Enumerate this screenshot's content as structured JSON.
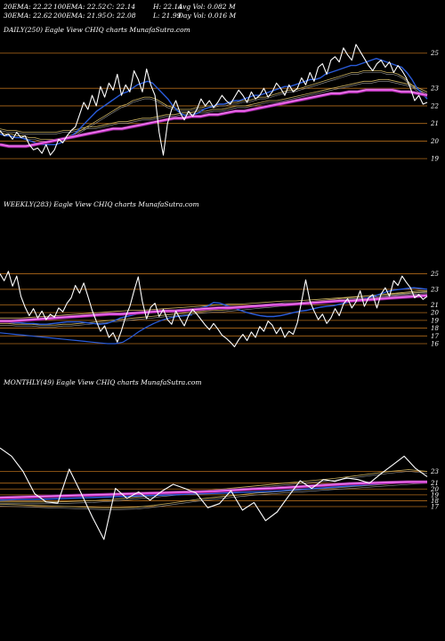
{
  "stats": {
    "ema20": "20EMA: 22.22",
    "ema100": "100EMA: 22.52",
    "close": "C: 22.14",
    "high": "H: 22.14",
    "avgvol": "Avg Vol: 0.082  M",
    "ema30": "30EMA: 22.62",
    "ema200": "200EMA: 21.95",
    "open": "O: 22.08",
    "low": "L: 21.99",
    "dayvol": "Day Vol: 0.016  M"
  },
  "panels": [
    {
      "label": "DAILY(250) Eagle  View  CHIQ charts MunafaSutra.com"
    },
    {
      "label": "WEEKLY(283) Eagle  View  CHIQ charts MunafaSutra.com"
    },
    {
      "label": "MONTHLY(49) Eagle  View  CHIQ charts MunafaSutra.com"
    }
  ],
  "colors": {
    "background": "#000000",
    "price": "#ffffff",
    "ema20": "#2a5cdb",
    "ema200": "#e040e0",
    "ema_other": "#c8b060",
    "level": "#b06a1a"
  },
  "chart_data": [
    {
      "type": "line",
      "title": "DAILY(250) Eagle  View  CHIQ charts MunafaSutra.com",
      "ylim": [
        18.4,
        26
      ],
      "levels": [
        25,
        23,
        22,
        21,
        20,
        19
      ],
      "series": [
        {
          "name": "price",
          "values": [
            20.6,
            20.3,
            20.4,
            20.1,
            20.5,
            20.2,
            20.3,
            19.8,
            19.5,
            19.6,
            19.3,
            19.8,
            19.2,
            19.5,
            20.1,
            19.9,
            20.3,
            20.6,
            20.8,
            21.5,
            22.2,
            21.8,
            22.6,
            22.0,
            23.1,
            22.5,
            23.3,
            22.9,
            23.8,
            22.6,
            23.2,
            22.8,
            24.0,
            23.5,
            22.8,
            24.1,
            23.2,
            22.6,
            20.5,
            19.2,
            21.0,
            21.8,
            22.3,
            21.6,
            21.2,
            21.7,
            21.4,
            21.8,
            22.4,
            22.0,
            22.3,
            21.9,
            22.2,
            22.6,
            22.3,
            22.1,
            22.5,
            22.9,
            22.6,
            22.2,
            22.8,
            22.4,
            22.6,
            23.0,
            22.5,
            22.8,
            23.3,
            23.0,
            22.6,
            23.2,
            22.8,
            23.0,
            23.6,
            23.2,
            23.9,
            23.4,
            24.2,
            24.4,
            23.8,
            24.6,
            24.8,
            24.5,
            25.3,
            24.9,
            24.6,
            25.5,
            25.1,
            24.7,
            24.3,
            24.0,
            24.4,
            24.6,
            24.2,
            24.5,
            23.9,
            24.3,
            24.0,
            23.6,
            23.0,
            22.3,
            22.6,
            22.1,
            22.2
          ]
        },
        {
          "name": "ema20",
          "values": [
            20.4,
            20.3,
            20.3,
            20.2,
            20.2,
            20.1,
            20.0,
            19.9,
            19.8,
            19.8,
            19.8,
            19.8,
            19.9,
            20.1,
            20.3,
            20.5,
            20.8,
            21.1,
            21.4,
            21.7,
            21.9,
            22.1,
            22.3,
            22.5,
            22.7,
            22.8,
            23.0,
            23.2,
            23.3,
            23.4,
            23.3,
            23.0,
            22.7,
            22.4,
            22.0,
            21.7,
            21.5,
            21.4,
            21.5,
            21.6,
            21.8,
            21.9,
            22.0,
            22.1,
            22.1,
            22.2,
            22.3,
            22.3,
            22.4,
            22.5,
            22.6,
            22.6,
            22.7,
            22.8,
            22.9,
            23.0,
            23.1,
            23.1,
            23.2,
            23.3,
            23.4,
            23.5,
            23.5,
            23.6,
            23.8,
            23.9,
            24.0,
            24.1,
            24.2,
            24.3,
            24.3,
            24.4,
            24.5,
            24.6,
            24.7,
            24.6,
            24.5,
            24.4,
            24.3,
            24.2,
            23.9,
            23.5,
            23.0,
            22.7,
            22.4
          ]
        },
        {
          "name": "ema30",
          "values": [
            20.5,
            20.4,
            20.4,
            20.3,
            20.3,
            20.2,
            20.2,
            20.1,
            20.1,
            20.1,
            20.1,
            20.2,
            20.3,
            20.4,
            20.6,
            20.8,
            21.0,
            21.2,
            21.4,
            21.6,
            21.8,
            22.0,
            22.1,
            22.3,
            22.4,
            22.5,
            22.5,
            22.4,
            22.2,
            22.0,
            21.9,
            21.8,
            21.8,
            21.8,
            21.9,
            21.9,
            22.0,
            22.0,
            22.1,
            22.1,
            22.2,
            22.2,
            22.3,
            22.3,
            22.4,
            22.5,
            22.5,
            22.6,
            22.7,
            22.8,
            22.9,
            22.9,
            23.0,
            23.1,
            23.2,
            23.3,
            23.4,
            23.5,
            23.6,
            23.7,
            23.8,
            23.9,
            23.9,
            24.0,
            24.0,
            24.0,
            24.0,
            23.9,
            23.9,
            23.8,
            23.6,
            23.3,
            23.0,
            22.8,
            22.6
          ]
        },
        {
          "name": "ema100",
          "values": [
            20.7,
            20.6,
            20.6,
            20.5,
            20.5,
            20.5,
            20.5,
            20.5,
            20.6,
            20.6,
            20.7,
            20.8,
            20.8,
            20.9,
            21.0,
            21.1,
            21.1,
            21.2,
            21.3,
            21.3,
            21.4,
            21.5,
            21.5,
            21.6,
            21.6,
            21.7,
            21.7,
            21.8,
            21.8,
            21.9,
            22.0,
            22.0,
            22.1,
            22.2,
            22.3,
            22.3,
            22.4,
            22.5,
            22.6,
            22.7,
            22.8,
            22.9,
            23.0,
            23.1,
            23.2,
            23.3,
            23.4,
            23.4,
            23.5,
            23.5,
            23.4,
            23.3,
            23.2,
            23.0,
            22.8
          ]
        },
        {
          "name": "ema200",
          "values": [
            19.8,
            19.7,
            19.7,
            19.7,
            19.8,
            19.9,
            20.0,
            20.1,
            20.2,
            20.3,
            20.4,
            20.5,
            20.6,
            20.7,
            20.7,
            20.8,
            20.9,
            21.0,
            21.1,
            21.2,
            21.3,
            21.3,
            21.4,
            21.4,
            21.5,
            21.5,
            21.6,
            21.7,
            21.7,
            21.8,
            21.9,
            22.0,
            22.1,
            22.2,
            22.3,
            22.4,
            22.5,
            22.6,
            22.7,
            22.7,
            22.8,
            22.8,
            22.9,
            22.9,
            22.9,
            22.9,
            22.8,
            22.8,
            22.7,
            22.6
          ]
        }
      ]
    },
    {
      "type": "line",
      "title": "WEEKLY(283) Eagle  View  CHIQ charts MunafaSutra.com",
      "ylim": [
        14.4,
        27
      ],
      "levels": [
        25,
        23,
        21,
        20,
        19,
        18,
        17,
        16
      ],
      "series": [
        {
          "name": "price",
          "values": [
            25.0,
            24.1,
            25.3,
            23.4,
            24.7,
            22.1,
            20.7,
            19.6,
            20.5,
            19.3,
            20.2,
            19.1,
            19.8,
            19.4,
            20.6,
            20.1,
            21.2,
            21.9,
            23.5,
            22.5,
            23.8,
            22.1,
            20.3,
            18.9,
            17.6,
            18.3,
            16.8,
            17.4,
            16.2,
            17.7,
            19.5,
            20.8,
            22.8,
            24.6,
            21.4,
            19.2,
            20.7,
            21.2,
            19.5,
            20.4,
            19.1,
            18.5,
            20.2,
            19.2,
            18.3,
            19.6,
            20.4,
            19.8,
            19.1,
            18.4,
            17.8,
            18.6,
            17.9,
            17.1,
            16.7,
            16.2,
            15.6,
            16.5,
            17.2,
            16.4,
            17.5,
            16.8,
            18.2,
            17.6,
            18.9,
            18.4,
            17.3,
            18.1,
            16.8,
            17.6,
            17.2,
            18.7,
            21.4,
            24.2,
            21.5,
            20.2,
            19.1,
            19.8,
            18.6,
            19.3,
            20.5,
            19.6,
            21.1,
            21.8,
            20.6,
            21.4,
            22.8,
            20.8,
            21.9,
            22.3,
            20.6,
            22.4,
            23.2,
            22.1,
            24.1,
            23.5,
            24.7,
            23.9,
            23.2,
            21.9,
            22.3,
            21.7,
            22.1
          ]
        },
        {
          "name": "ema20",
          "values": [
            18.8,
            18.8,
            18.7,
            18.7,
            18.6,
            18.6,
            18.5,
            18.5,
            18.6,
            18.7,
            18.8,
            18.8,
            18.8,
            18.7,
            18.6,
            18.5,
            18.6,
            18.9,
            19.3,
            19.5,
            19.7,
            19.9,
            20.0,
            20.1,
            20.2,
            20.3,
            20.3,
            20.4,
            20.4,
            20.5,
            20.6,
            20.8,
            21.3,
            21.2,
            20.9,
            20.6,
            20.3,
            20.0,
            19.8,
            19.6,
            19.5,
            19.5,
            19.6,
            19.8,
            20.0,
            20.2,
            20.3,
            20.5,
            20.7,
            20.8,
            20.9,
            21.1,
            21.3,
            21.5,
            21.7,
            21.9,
            22.1,
            22.4,
            22.7,
            22.9,
            23.0,
            23.1,
            23.2,
            23.1,
            23.0
          ]
        },
        {
          "name": "ema30",
          "values": [
            18.6,
            18.6,
            18.5,
            18.5,
            18.5,
            18.4,
            18.4,
            18.4,
            18.5,
            18.5,
            18.6,
            18.7,
            18.8,
            18.9,
            19.0,
            19.1,
            19.2,
            19.3,
            19.4,
            19.5,
            19.6,
            19.7,
            19.8,
            19.9,
            20.0,
            20.1,
            20.2,
            20.3,
            20.3,
            20.4,
            20.5,
            20.6,
            20.7,
            20.8,
            20.9,
            21.0,
            21.1,
            21.2,
            21.3,
            21.4,
            21.5,
            21.6,
            21.7,
            21.8,
            21.9,
            22.0,
            22.1,
            22.2,
            22.3,
            22.4,
            22.5,
            22.6,
            22.7,
            22.8,
            22.8
          ]
        },
        {
          "name": "ema100",
          "values": [
            19.3,
            19.3,
            19.3,
            19.4,
            19.5,
            19.6,
            19.7,
            19.8,
            19.9,
            20.0,
            20.1,
            20.2,
            20.3,
            20.3,
            20.4,
            20.5,
            20.6,
            20.7,
            20.8,
            20.9,
            21.0,
            21.1,
            21.1,
            21.2,
            21.3,
            21.4,
            21.5,
            21.5,
            21.6,
            21.7,
            21.8,
            21.9,
            22.0,
            22.1,
            22.2,
            22.3,
            22.4,
            22.5,
            22.6,
            22.7
          ]
        },
        {
          "name": "ema200",
          "values": [
            18.9,
            18.9,
            19.0,
            19.1,
            19.2,
            19.3,
            19.4,
            19.5,
            19.6,
            19.7,
            19.8,
            19.8,
            19.9,
            20.0,
            20.1,
            20.2,
            20.2,
            20.3,
            20.4,
            20.5,
            20.6,
            20.6,
            20.7,
            20.8,
            20.9,
            21.0,
            21.0,
            21.1,
            21.2,
            21.3,
            21.4,
            21.5,
            21.5,
            21.6,
            21.7,
            21.8,
            21.9,
            22.0,
            22.1,
            22.2
          ]
        },
        {
          "name": "ema_low",
          "values": [
            17.4,
            17.3,
            17.2,
            17.1,
            17.0,
            16.9,
            16.8,
            16.7,
            16.6,
            16.5,
            16.4,
            16.3,
            16.2,
            16.1,
            16.0,
            16.0,
            16.2,
            16.8,
            17.5,
            18.1,
            18.6,
            19.0,
            19.3,
            19.5,
            19.6,
            19.7
          ]
        }
      ]
    },
    {
      "type": "line",
      "title": "MONTHLY(49) Eagle  View  CHIQ charts MunafaSutra.com",
      "ylim": [
        12.6,
        29
      ],
      "levels": [
        23,
        21,
        20,
        19,
        18,
        17
      ],
      "series": [
        {
          "name": "price",
          "values": [
            27.0,
            25.6,
            23.0,
            19.2,
            17.8,
            17.6,
            23.4,
            19.4,
            15.2,
            11.4,
            20.1,
            18.4,
            19.5,
            18.1,
            19.6,
            20.8,
            20.1,
            19.3,
            16.8,
            17.5,
            19.7,
            16.4,
            17.7,
            14.6,
            16.1,
            18.8,
            21.4,
            20.1,
            21.6,
            21.3,
            21.9,
            21.6,
            21.0,
            22.6,
            24.1,
            25.6,
            23.5,
            22.1
          ]
        },
        {
          "name": "ema20",
          "values": [
            18.1,
            18.2,
            18.2,
            18.3,
            18.4,
            18.5,
            18.6,
            18.7,
            18.8,
            18.9,
            19.0,
            19.1,
            19.2,
            19.3,
            19.4,
            19.5,
            19.6,
            19.8,
            20.0,
            20.2,
            20.4,
            20.6,
            20.8,
            21.0,
            21.2,
            21.3
          ]
        },
        {
          "name": "ema30",
          "values": [
            17.4,
            17.3,
            17.2,
            17.1,
            17.0,
            16.9,
            16.8,
            16.8,
            16.9,
            17.2,
            17.6,
            18.0,
            18.4,
            18.7,
            19.0,
            19.3,
            19.5,
            19.7,
            19.9,
            20.1,
            20.3,
            20.5,
            20.7,
            20.9,
            21.1,
            21.3
          ]
        },
        {
          "name": "ema100",
          "values": [
            17.8,
            17.8,
            17.8,
            17.8,
            17.9,
            18.0,
            18.2,
            18.5,
            18.8,
            19.1,
            19.4,
            19.7,
            20.0,
            20.3,
            20.6,
            20.9,
            21.2,
            21.5,
            21.8,
            22.2,
            22.6,
            23.0,
            23.3,
            23.0
          ]
        },
        {
          "name": "ema200",
          "values": [
            18.5,
            18.6,
            18.7,
            18.8,
            18.9,
            19.0,
            19.1,
            19.2,
            19.3,
            19.4,
            19.5,
            19.6,
            19.8,
            20.0,
            20.1,
            20.3,
            20.5,
            20.7,
            20.9,
            21.0,
            21.1,
            21.2,
            21.2
          ]
        }
      ]
    }
  ]
}
